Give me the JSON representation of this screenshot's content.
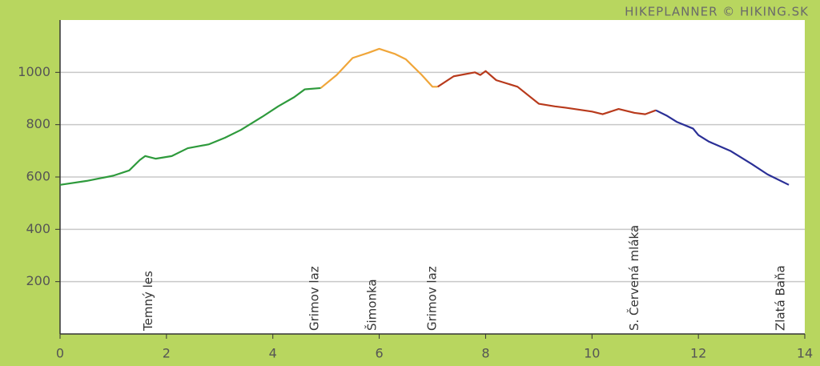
{
  "chart_data": {
    "type": "line",
    "title": "HIKEPLANNER © HIKING.SK",
    "xlim": [
      0,
      14
    ],
    "xticks": [
      0,
      2,
      4,
      6,
      8,
      10,
      12,
      14
    ],
    "ylim": [
      0,
      1200
    ],
    "yticks": [
      200,
      400,
      600,
      800,
      1000
    ],
    "grid": true,
    "series": [
      {
        "color": "#2e9a3c",
        "x": [
          0,
          0.5,
          1.0,
          1.3,
          1.5,
          1.6,
          1.8,
          2.1,
          2.4,
          2.8,
          3.1,
          3.4,
          3.8,
          4.1,
          4.4,
          4.6,
          4.9
        ],
        "values": [
          570,
          585,
          605,
          625,
          665,
          680,
          670,
          680,
          710,
          725,
          750,
          780,
          830,
          870,
          905,
          935,
          940
        ]
      },
      {
        "color": "#f0a63a",
        "x": [
          4.9,
          5.2,
          5.5,
          5.8,
          6.0,
          6.3,
          6.5,
          6.8,
          7.0,
          7.1
        ],
        "values": [
          940,
          990,
          1055,
          1075,
          1090,
          1070,
          1050,
          990,
          945,
          945
        ]
      },
      {
        "color": "#b83a1c",
        "x": [
          7.1,
          7.4,
          7.8,
          7.9,
          8.0,
          8.2,
          8.6,
          9.0,
          9.3,
          9.5,
          10.0,
          10.2,
          10.5,
          10.8,
          11.0,
          11.2
        ],
        "values": [
          945,
          985,
          1000,
          990,
          1005,
          970,
          945,
          880,
          870,
          865,
          850,
          840,
          860,
          845,
          840,
          855
        ]
      },
      {
        "color": "#2a2f96",
        "x": [
          11.2,
          11.4,
          11.6,
          11.9,
          12.0,
          12.2,
          12.6,
          13.0,
          13.3,
          13.7
        ],
        "values": [
          855,
          835,
          810,
          785,
          760,
          735,
          700,
          650,
          610,
          570
        ]
      }
    ],
    "annotations": [
      {
        "x": 1.66,
        "label": "Temný les"
      },
      {
        "x": 4.79,
        "label": "Grimov laz"
      },
      {
        "x": 5.87,
        "label": "Šimonka"
      },
      {
        "x": 7.0,
        "label": "Grimov laz"
      },
      {
        "x": 10.8,
        "label": "S. Červená mláka"
      },
      {
        "x": 13.55,
        "label": "Zlatá Baňa"
      }
    ]
  }
}
